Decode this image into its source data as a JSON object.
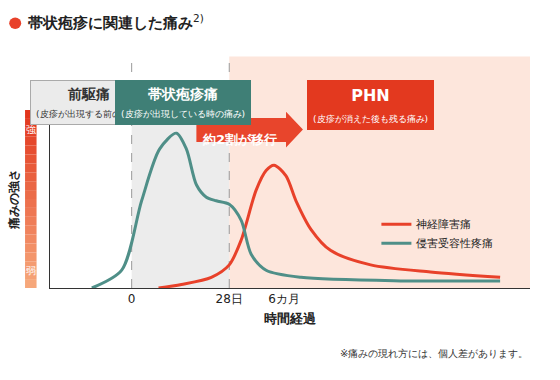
{
  "chart_data": {
    "type": "line",
    "title": "帯状疱疹に関連した痛み",
    "title_ref": "2)",
    "x_label": "時間経過",
    "y_label": "痛みの強さ",
    "xlim": [
      -82,
      400
    ],
    "xticks": [
      0,
      {
        "value": 98,
        "label": "28日"
      },
      {
        "value": 153,
        "label": "6カ月"
      }
    ],
    "ylim": [
      0,
      100
    ],
    "yticks": [
      {
        "value": 10,
        "label": "弱"
      },
      {
        "value": 89,
        "label": "強"
      }
    ],
    "grid": false,
    "legend": "right",
    "series": [
      {
        "name": "神経障害痛",
        "color": "#e8412a",
        "x": [
          27,
          50,
          80,
          98,
          110,
          125,
          135,
          143,
          155,
          165,
          180,
          200,
          240,
          300,
          370
        ],
        "values": [
          0,
          2,
          6,
          13,
          27,
          55,
          66,
          69,
          63,
          49,
          33,
          21,
          13,
          9,
          6
        ]
      },
      {
        "name": "侵害受容性疼痛",
        "color": "#4f8f88",
        "x": [
          -40,
          -10,
          10,
          28,
          45,
          55,
          65,
          75,
          85,
          98,
          110,
          120,
          135,
          170,
          270,
          370
        ],
        "values": [
          0,
          10,
          49,
          78,
          87,
          78,
          58,
          51,
          49,
          47,
          38,
          19,
          10,
          6,
          4,
          4
        ]
      }
    ],
    "phases": [
      {
        "label": "前駆痛",
        "note": "(皮疹が出現する前の痛み)"
      },
      {
        "label": "帯状疱疹痛",
        "note": "(皮疹が出現している時の痛み)"
      },
      {
        "label": "PHN",
        "note": "(皮疹が消えた後も残る痛み)"
      }
    ],
    "arrow_label": "約2割が移行",
    "footnote": "※痛みの現れ方には、個人差があります。"
  }
}
